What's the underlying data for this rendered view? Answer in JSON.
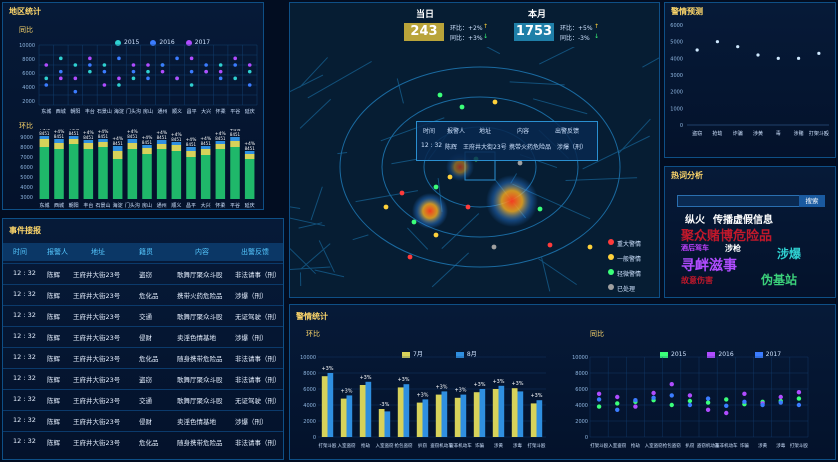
{
  "left_top": {
    "title": "地区统计",
    "yoy_label": "同比",
    "mom_label": "环比",
    "legend": [
      "2015",
      "2016",
      "2017"
    ],
    "legend_colors": [
      "#2fd0d0",
      "#3b7cff",
      "#b04cff"
    ],
    "scatter_y_ticks": [
      "10000",
      "8000",
      "6000",
      "4000",
      "2000"
    ],
    "bar_y_ticks": [
      "9000",
      "8000",
      "7000",
      "6000",
      "5000",
      "4000",
      "3000"
    ],
    "categories": [
      "东城",
      "西城",
      "朝阳",
      "丰台",
      "石景山",
      "海淀",
      "门头沟",
      "房山",
      "通州",
      "顺义",
      "昌平",
      "大兴",
      "怀柔",
      "平谷",
      "延庆"
    ],
    "bar_pct": [
      "+4%",
      "+4%",
      "+4%",
      "+4%",
      "+4%",
      "+4%",
      "+4%",
      "+4%",
      "+4%",
      "+4%",
      "+4%",
      "+4%",
      "+4%",
      "+4%",
      "+4%"
    ],
    "bar_top": [
      "8451",
      "8451",
      "8451",
      "8451",
      "8451",
      "8451",
      "8451",
      "8451",
      "8451",
      "8451",
      "8451",
      "8451",
      "8451",
      "8451",
      "8451"
    ]
  },
  "events": {
    "title": "事件接报",
    "headers": [
      "时间",
      "报警人",
      "地址",
      "籍贯",
      "内容",
      "出警反馈"
    ],
    "rows": [
      [
        "12 : 32",
        "陈辉",
        "王府井大街23号",
        "盗窃",
        "歌舞厅聚众斗殴",
        "非法请事（刑）"
      ],
      [
        "12 : 32",
        "陈辉",
        "王府井大街23号",
        "危化品",
        "携带火药危险品",
        "涉爆（刑）"
      ],
      [
        "12 : 32",
        "陈辉",
        "王府井大街23号",
        "交通",
        "歌舞厅聚众斗殴",
        "无证驾驶（刑）"
      ],
      [
        "12 : 32",
        "陈辉",
        "王府井大街23号",
        "侵财",
        "卖淫色情基地",
        "涉爆（刑）"
      ],
      [
        "12 : 32",
        "陈辉",
        "王府井大街23号",
        "危化品",
        "随身携带危险品",
        "非法请事（刑）"
      ],
      [
        "12 : 32",
        "陈辉",
        "王府井大街23号",
        "盗窃",
        "歌舞厅聚众斗殴",
        "非法请事（刑）"
      ],
      [
        "12 : 32",
        "陈辉",
        "王府井大街23号",
        "交通",
        "歌舞厅聚众斗殴",
        "无证驾驶（刑）"
      ],
      [
        "12 : 32",
        "陈辉",
        "王府井大街23号",
        "侵财",
        "卖淫色情基地",
        "涉爆（刑）"
      ],
      [
        "12 : 32",
        "陈辉",
        "王府井大街23号",
        "危化品",
        "随身携带危险品",
        "非法请事（刑）"
      ]
    ]
  },
  "top_stats": {
    "today_label": "当日",
    "today_value": "243",
    "today_yoy": "环比：+2%",
    "today_mom": "同比：+3%",
    "month_label": "本月",
    "month_value": "1753",
    "month_yoy": "环比：+5%",
    "month_mom": "同比：-3%"
  },
  "map": {
    "popup_headers": [
      "时间",
      "报警人",
      "地址",
      "内容",
      "出警反馈"
    ],
    "popup_row": [
      "12 : 32",
      "陈辉",
      "王府井大街23号",
      "携带火药危险品",
      "涉爆（刑）"
    ],
    "legend": [
      {
        "label": "重大警情",
        "color": "#ff3b3b"
      },
      {
        "label": "一般警情",
        "color": "#ffd23b"
      },
      {
        "label": "轻微警情",
        "color": "#3bff7a"
      },
      {
        "label": "已处理",
        "color": "#a0a0a0"
      }
    ]
  },
  "forecast": {
    "title": "警情预测",
    "y_ticks": [
      "6000",
      "5000",
      "4000",
      "3000",
      "2000",
      "1000",
      "0"
    ],
    "categories": [
      "盗窃",
      "抢劫",
      "诈骗",
      "涉黄",
      "毒",
      "涉赌",
      "打架斗殴"
    ],
    "values": [
      4500,
      5000,
      4700,
      4200,
      4000,
      4000,
      4300
    ]
  },
  "hot": {
    "title": "热词分析",
    "search_placeholder": "",
    "search_button": "搜索",
    "words": [
      {
        "text": "纵火",
        "color": "#ffffff"
      },
      {
        "text": "传播虚假信息",
        "color": "#ffffff"
      },
      {
        "text": "聚众赌博危险品",
        "color": "#c0182b"
      },
      {
        "text": "酒后驾车",
        "color": "#c041ff"
      },
      {
        "text": "涉枪",
        "color": "#ffffff"
      },
      {
        "text": "涉爆",
        "color": "#2fd0d0"
      },
      {
        "text": "寻衅滋事",
        "color": "#b04cff"
      },
      {
        "text": "故意伤害",
        "color": "#c0182b"
      },
      {
        "text": "伪基站",
        "color": "#3bd07a"
      }
    ]
  },
  "alarm_stats": {
    "title": "警情统计",
    "mom_label": "环比",
    "yoy_label": "同比",
    "bar_legend": [
      "7月",
      "8月"
    ],
    "bar_legend_colors": [
      "#d7d25a",
      "#2f8fe0"
    ],
    "scatter_legend": [
      "2015",
      "2016",
      "2017"
    ],
    "scatter_legend_colors": [
      "#3bff7a",
      "#b04cff",
      "#3b7cff"
    ],
    "y_ticks": [
      "10000",
      "8000",
      "6000",
      "4000",
      "2000",
      "0"
    ],
    "categories": [
      "打架斗殴",
      "入室盗窃",
      "抢劫",
      "入室盗窃",
      "抢包盗窃",
      "扒窃",
      "盗窃机动车",
      "盗非机动车",
      "诈骗",
      "涉黄",
      "涉毒",
      "打架斗殴"
    ],
    "bar_pct": [
      "+3%",
      "+3%",
      "+3%",
      "-3%",
      "+3%",
      "+3%",
      "+3%",
      "+3%",
      "+3%",
      "+3%",
      "+3%",
      "+3%"
    ],
    "july": [
      7600,
      4800,
      6500,
      3500,
      6200,
      4300,
      5300,
      4900,
      5600,
      6000,
      6100,
      4200
    ],
    "august": [
      8000,
      5200,
      6900,
      3200,
      6600,
      4700,
      5700,
      5300,
      6000,
      6400,
      5700,
      4600
    ]
  }
}
